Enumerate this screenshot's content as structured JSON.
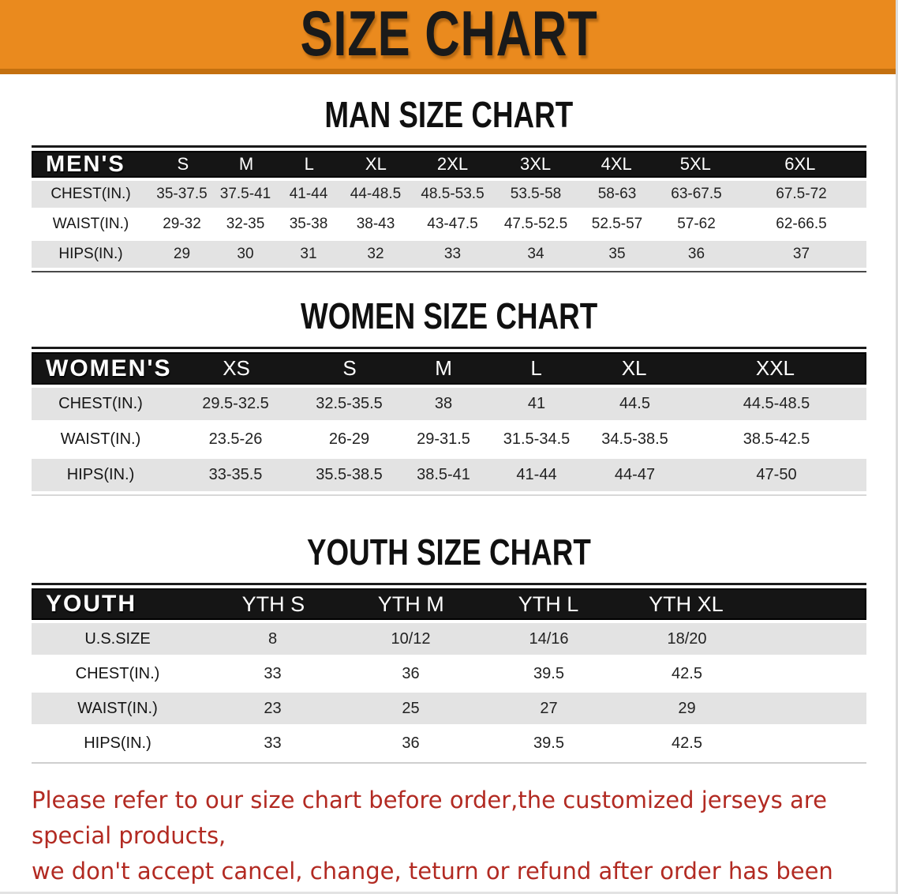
{
  "banner": {
    "title": "SIZE CHART"
  },
  "men": {
    "section_title": "MAN SIZE CHART",
    "group": "MEN'S",
    "sizes": [
      "S",
      "M",
      "L",
      "XL",
      "2XL",
      "3XL",
      "4XL",
      "5XL",
      "6XL"
    ],
    "rows": [
      {
        "label": "CHEST(IN.)",
        "values": [
          "35-37.5",
          "37.5-41",
          "41-44",
          "44-48.5",
          "48.5-53.5",
          "53.5-58",
          "58-63",
          "63-67.5",
          "67.5-72"
        ]
      },
      {
        "label": "WAIST(IN.)",
        "values": [
          "29-32",
          "32-35",
          "35-38",
          "38-43",
          "43-47.5",
          "47.5-52.5",
          "52.5-57",
          "57-62",
          "62-66.5"
        ]
      },
      {
        "label": "HIPS(IN.)",
        "values": [
          "29",
          "30",
          "31",
          "32",
          "33",
          "34",
          "35",
          "36",
          "37"
        ]
      }
    ]
  },
  "women": {
    "section_title": "WOMEN SIZE CHART",
    "group": "WOMEN'S",
    "sizes": [
      "XS",
      "S",
      "M",
      "L",
      "XL",
      "XXL"
    ],
    "rows": [
      {
        "label": "CHEST(IN.)",
        "values": [
          "29.5-32.5",
          "32.5-35.5",
          "38",
          "41",
          "44.5",
          "44.5-48.5"
        ]
      },
      {
        "label": "WAIST(IN.)",
        "values": [
          "23.5-26",
          "26-29",
          "29-31.5",
          "31.5-34.5",
          "34.5-38.5",
          "38.5-42.5"
        ]
      },
      {
        "label": "HIPS(IN.)",
        "values": [
          "33-35.5",
          "35.5-38.5",
          "38.5-41",
          "41-44",
          "44-47",
          "47-50"
        ]
      }
    ]
  },
  "youth": {
    "section_title": "YOUTH SIZE CHART",
    "group": "YOUTH",
    "sizes": [
      "YTH S",
      "YTH M",
      "YTH L",
      "YTH XL"
    ],
    "rows": [
      {
        "label": "U.S.SIZE",
        "values": [
          "8",
          "10/12",
          "14/16",
          "18/20"
        ]
      },
      {
        "label": "CHEST(IN.)",
        "values": [
          "33",
          "36",
          "39.5",
          "42.5"
        ]
      },
      {
        "label": "WAIST(IN.)",
        "values": [
          "23",
          "25",
          "27",
          "29"
        ]
      },
      {
        "label": "HIPS(IN.)",
        "values": [
          "33",
          "36",
          "39.5",
          "42.5"
        ]
      }
    ]
  },
  "note": {
    "line1": "Please refer to our size chart before order,the customized jerseys are special products,",
    "line2": "we don't accept cancel, change, teturn or refund after order has been placed!"
  },
  "colors": {
    "banner_orange": "#EA8A1E",
    "banner_edge": "#C4700F",
    "header_black": "#151515",
    "row_stripe": "#E3E3E3",
    "note_red": "#B22A22"
  }
}
